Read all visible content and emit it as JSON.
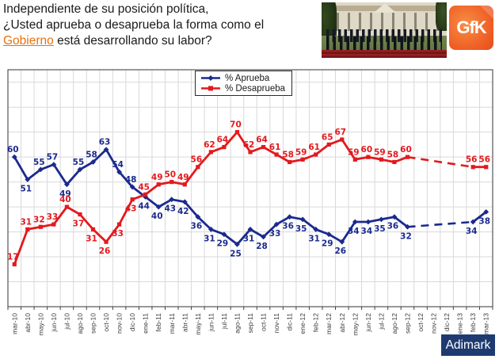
{
  "header": {
    "line1": "Independiente de su posición política,",
    "line2": "¿Usted aprueba o desaprueba la forma como el",
    "line3_highlight": "Gobierno",
    "line3_rest": " está desarrollando su labor?"
  },
  "logos": {
    "gfk": "GfK",
    "adimark": "Adimark"
  },
  "chart_data": {
    "type": "line",
    "title": "¿Usted aprueba o desaprueba la forma como el Gobierno está desarrollando su labor?",
    "xlabel": "",
    "ylabel": "",
    "ylim": [
      0,
      95
    ],
    "grid": true,
    "legend_position": "top-center",
    "colors": {
      "grid": "#d9d9d9",
      "border": "#555555",
      "axis": "#404040"
    },
    "dashed_note": "line is dashed (no surveys) between sep-12 and feb-13",
    "categories": [
      "mar-10",
      "abr-10",
      "may-10",
      "jun-10",
      "jul-10",
      "ago-10",
      "sep-10",
      "oct-10",
      "nov-10",
      "dic-10",
      "ene-11",
      "feb-11",
      "mar-11",
      "abr-11",
      "may-11",
      "jun-11",
      "jul-11",
      "ago-11",
      "sep-11",
      "oct-11",
      "nov-11",
      "dic-11",
      "ene-12",
      "feb-12",
      "mar-12",
      "abr-12",
      "may-12",
      "jun-12",
      "jul-12",
      "ago-12",
      "sep-12",
      "oct-12",
      "nov-12",
      "dic-12",
      "ene-13",
      "feb-13",
      "mar-13"
    ],
    "series": [
      {
        "name": "% Aprueba",
        "color": "#1b2a8e",
        "marker": "diamond",
        "values": [
          60,
          51,
          55,
          57,
          49,
          55,
          58,
          63,
          54,
          48,
          44,
          40,
          43,
          42,
          36,
          31,
          29,
          25,
          31,
          28,
          33,
          36,
          35,
          31,
          29,
          26,
          34,
          34,
          35,
          36,
          32,
          null,
          null,
          null,
          null,
          34,
          38
        ],
        "label_pos": [
          "a",
          "b",
          "a",
          "a",
          "b",
          "a",
          "a",
          "a",
          "a",
          "a",
          "b",
          "b",
          "b",
          "b",
          "b",
          "b",
          "b",
          "b",
          "b",
          "b",
          "b",
          "b",
          "b",
          "b",
          "b",
          "b",
          "b",
          "b",
          "b",
          "b",
          "b",
          null,
          null,
          null,
          null,
          "b",
          "b"
        ]
      },
      {
        "name": "% Desaprueba",
        "color": "#e3191d",
        "marker": "square",
        "values": [
          17,
          31,
          32,
          33,
          40,
          37,
          31,
          26,
          33,
          43,
          45,
          49,
          50,
          49,
          56,
          62,
          64,
          70,
          62,
          64,
          61,
          58,
          59,
          61,
          65,
          67,
          59,
          60,
          59,
          58,
          60,
          null,
          null,
          null,
          null,
          56,
          56
        ],
        "label_pos": [
          "a",
          "a",
          "a",
          "a",
          "a",
          "b",
          "b",
          "b",
          "b",
          "b",
          "a",
          "a",
          "a",
          "a",
          "a",
          "a",
          "a",
          "a",
          "a",
          "a",
          "a",
          "a",
          "a",
          "a",
          "a",
          "a",
          "a",
          "a",
          "a",
          "a",
          "a",
          null,
          null,
          null,
          null,
          "a",
          "a"
        ]
      }
    ]
  }
}
